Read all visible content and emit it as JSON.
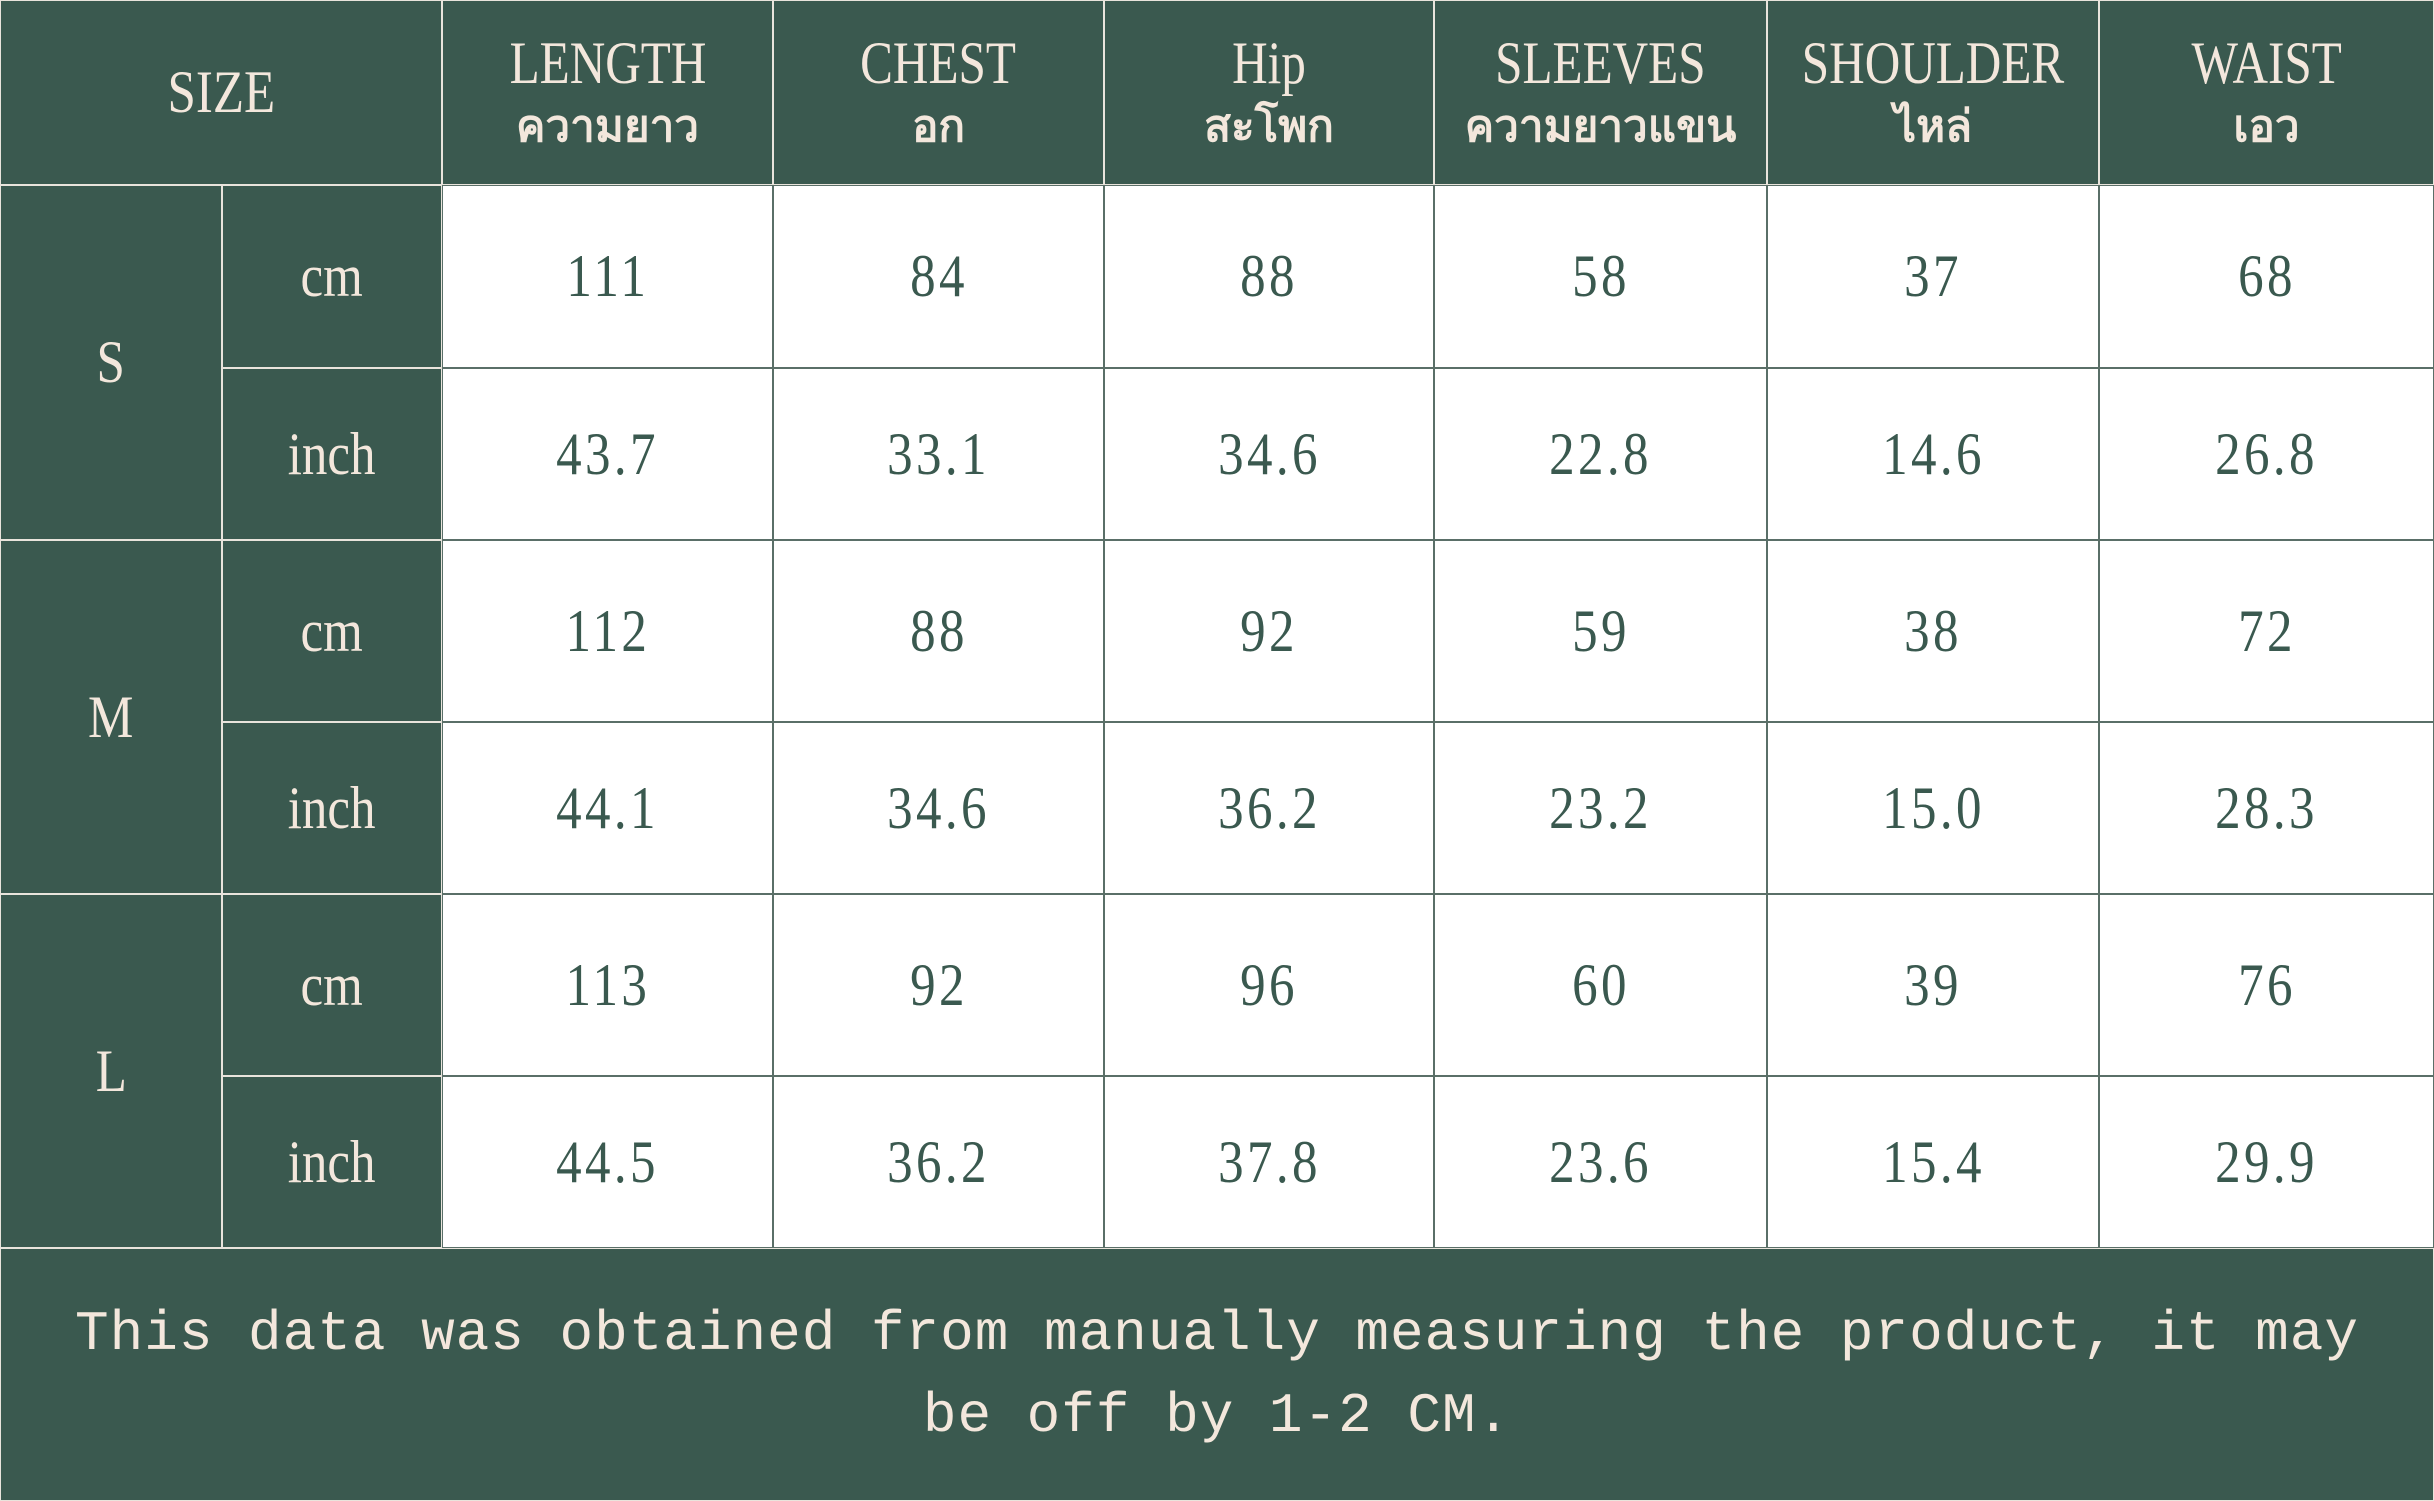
{
  "table": {
    "size_label": "SIZE",
    "columns": [
      {
        "en": "LENGTH",
        "th": "ความยาว"
      },
      {
        "en": "CHEST",
        "th": "อก"
      },
      {
        "en": "Hip",
        "th": "สะโพก"
      },
      {
        "en": "SLEEVES",
        "th": "ความยาวแขน"
      },
      {
        "en": "SHOULDER",
        "th": "ไหล่"
      },
      {
        "en": "WAIST",
        "th": "เอว"
      }
    ],
    "sizes": [
      {
        "size": "S",
        "rows": [
          {
            "unit": "cm",
            "values": [
              "111",
              "84",
              "88",
              "58",
              "37",
              "68"
            ]
          },
          {
            "unit": "inch",
            "values": [
              "43.7",
              "33.1",
              "34.6",
              "22.8",
              "14.6",
              "26.8"
            ]
          }
        ]
      },
      {
        "size": "M",
        "rows": [
          {
            "unit": "cm",
            "values": [
              "112",
              "88",
              "92",
              "59",
              "38",
              "72"
            ]
          },
          {
            "unit": "inch",
            "values": [
              "44.1",
              "34.6",
              "36.2",
              "23.2",
              "15.0",
              "28.3"
            ]
          }
        ]
      },
      {
        "size": "L",
        "rows": [
          {
            "unit": "cm",
            "values": [
              "113",
              "92",
              "96",
              "60",
              "39",
              "76"
            ]
          },
          {
            "unit": "inch",
            "values": [
              "44.5",
              "36.2",
              "37.8",
              "23.6",
              "15.4",
              "29.9"
            ]
          }
        ]
      }
    ]
  },
  "footer": {
    "note": "This data was obtained from manually measuring the product, it may be off by 1-2 CM."
  },
  "colors": {
    "header_bg": "#3a594f",
    "header_text": "#f3e7dc",
    "value_text": "#3a594f"
  }
}
